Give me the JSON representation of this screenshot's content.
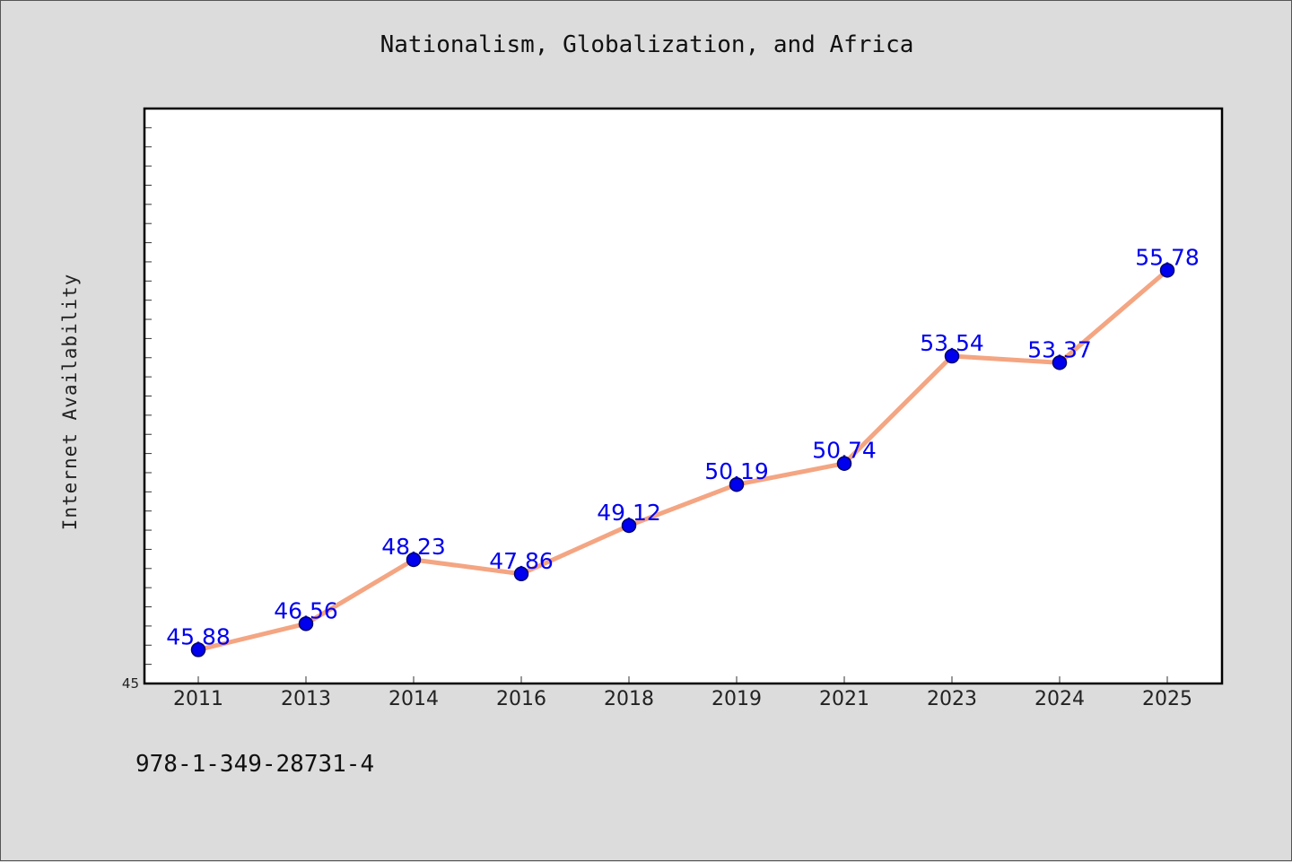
{
  "chart_data": {
    "type": "line",
    "title": "Nationalism, Globalization, and Africa",
    "xlabel": "",
    "ylabel": "Internet Availability",
    "categories": [
      "2011",
      "2013",
      "2014",
      "2016",
      "2018",
      "2019",
      "2021",
      "2023",
      "2024",
      "2025"
    ],
    "series": [
      {
        "values": [
          45.88,
          46.56,
          48.23,
          47.86,
          49.12,
          50.19,
          50.74,
          53.54,
          53.37,
          55.78
        ]
      }
    ],
    "data_labels": [
      "45.88",
      "46.56",
      "48.23",
      "47.86",
      "49.12",
      "50.19",
      "50.74",
      "53.54",
      "53.37",
      "55.78"
    ],
    "ylim": [
      45,
      60
    ],
    "y_tick_labels": [
      "45"
    ],
    "grid": false,
    "line_color": "#f4a582",
    "marker_color": "#0000ee",
    "label_color": "#0000ee",
    "plot_background": "#ffffff",
    "figure_background": "#dcdcdc"
  },
  "footnote": "978-1-349-28731-4"
}
